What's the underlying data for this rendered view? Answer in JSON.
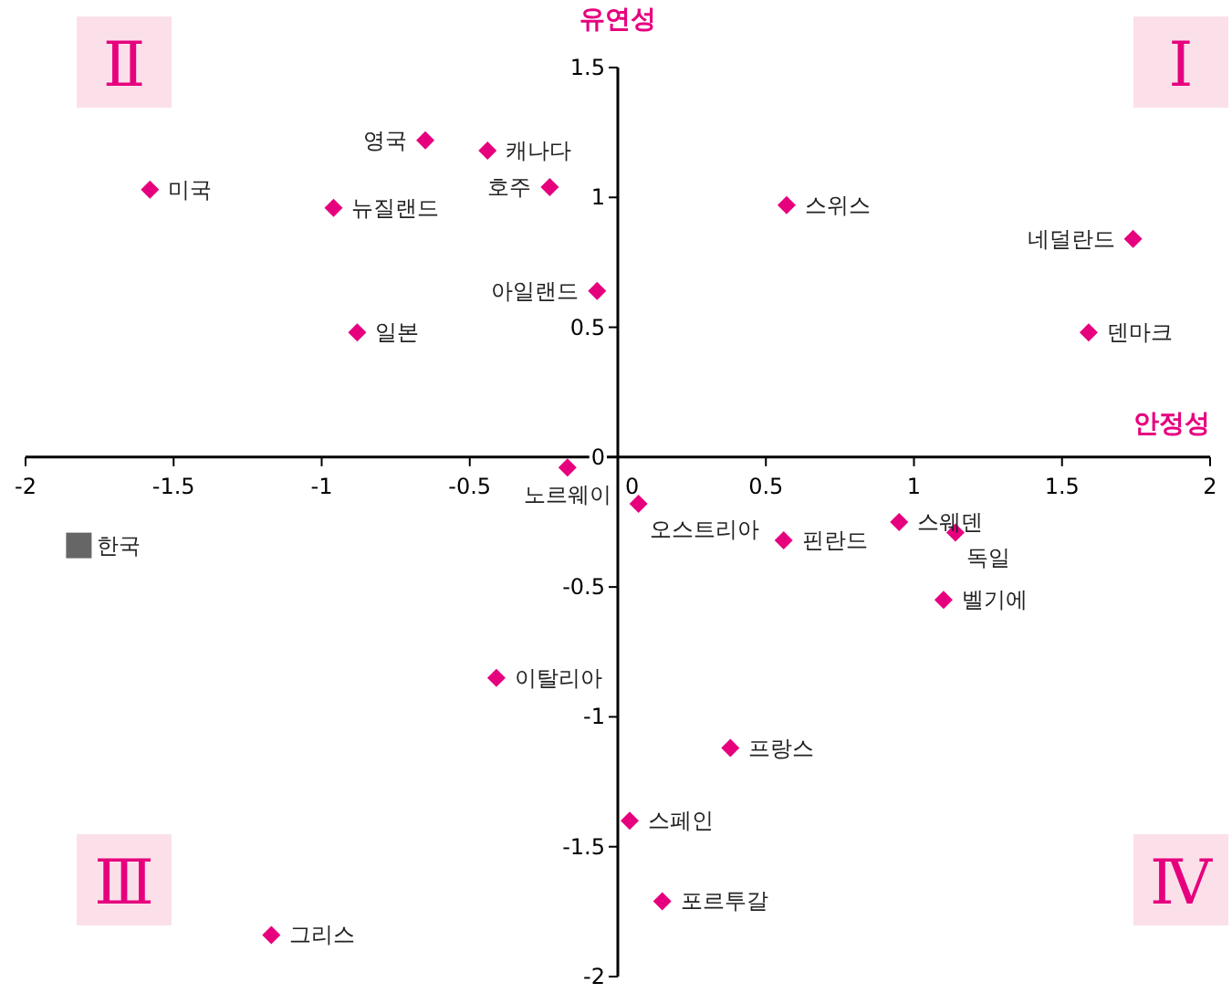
{
  "chart_data": {
    "type": "scatter",
    "xlabel": "안정성",
    "ylabel": "유연성",
    "xlim": [
      -2,
      2
    ],
    "ylim": [
      -2,
      1.5
    ],
    "xticks": [
      -2,
      -1.5,
      -1,
      -0.5,
      0,
      0.5,
      1,
      1.5,
      2
    ],
    "yticks": [
      -2,
      -1.5,
      -1,
      -0.5,
      0,
      0.5,
      1,
      1.5
    ],
    "grid": false,
    "series": [
      {
        "color": "#e6007e",
        "marker": "diamond",
        "x": [
          -1.58,
          -0.96,
          -0.65,
          -0.44,
          -0.23,
          -0.88,
          -0.07,
          0.57,
          1.74,
          1.59,
          -0.17,
          0.07,
          0.56,
          0.95,
          1.14,
          1.1,
          -0.41,
          0.38,
          0.04,
          0.15,
          -1.17
        ],
        "values": [
          1.03,
          0.96,
          1.22,
          1.18,
          1.04,
          0.48,
          0.64,
          0.97,
          0.84,
          0.48,
          -0.04,
          -0.18,
          -0.32,
          -0.25,
          -0.29,
          -0.55,
          -0.85,
          -1.12,
          -1.4,
          -1.71,
          -1.84
        ]
      },
      {
        "color": "#666666",
        "marker": "square",
        "x": [
          -1.82
        ],
        "values": [
          -0.34
        ]
      }
    ],
    "annotations": [
      "Ⅰ",
      "Ⅱ",
      "Ⅲ",
      "Ⅳ",
      {
        "text": "미국",
        "x": -1.58,
        "y": 1.03
      },
      {
        "text": "뉴질랜드",
        "x": -0.96,
        "y": 0.96
      },
      {
        "text": "영국",
        "x": -0.65,
        "y": 1.22
      },
      {
        "text": "캐나다",
        "x": -0.44,
        "y": 1.18
      },
      {
        "text": "호주",
        "x": -0.23,
        "y": 1.04
      },
      {
        "text": "일본",
        "x": -0.88,
        "y": 0.48
      },
      {
        "text": "아일랜드",
        "x": -0.07,
        "y": 0.64
      },
      {
        "text": "스위스",
        "x": 0.57,
        "y": 0.97
      },
      {
        "text": "네덜란드",
        "x": 1.74,
        "y": 0.84
      },
      {
        "text": "덴마크",
        "x": 1.59,
        "y": 0.48
      },
      {
        "text": "노르웨이",
        "x": -0.17,
        "y": -0.04
      },
      {
        "text": "오스트리아",
        "x": 0.07,
        "y": -0.18
      },
      {
        "text": "핀란드",
        "x": 0.56,
        "y": -0.32
      },
      {
        "text": "스웨덴",
        "x": 0.95,
        "y": -0.25
      },
      {
        "text": "독일",
        "x": 1.14,
        "y": -0.29
      },
      {
        "text": "벨기에",
        "x": 1.1,
        "y": -0.55
      },
      {
        "text": "이탈리아",
        "x": -0.41,
        "y": -0.85
      },
      {
        "text": "프랑스",
        "x": 0.38,
        "y": -1.12
      },
      {
        "text": "스페인",
        "x": 0.04,
        "y": -1.4
      },
      {
        "text": "포르투갈",
        "x": 0.15,
        "y": -1.71
      },
      {
        "text": "그리스",
        "x": -1.17,
        "y": -1.84
      },
      {
        "text": "한국",
        "x": -1.82,
        "y": -0.34
      }
    ]
  }
}
